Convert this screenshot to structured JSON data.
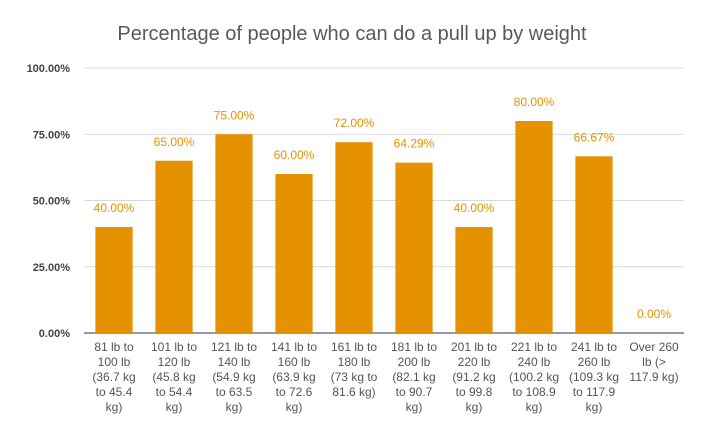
{
  "chart_data": {
    "type": "bar",
    "title": "Percentage of people who can do a pull up by weight",
    "xlabel": "",
    "ylabel": "",
    "ylim": [
      0,
      100
    ],
    "yticks": [
      "0.00%",
      "25.00%",
      "50.00%",
      "75.00%",
      "100.00%"
    ],
    "ytick_values": [
      0,
      25,
      50,
      75,
      100
    ],
    "grid": true,
    "legend": "none",
    "bar_color": "#e69100",
    "label_color": "#e69100",
    "categories": [
      [
        "81 lb to",
        "100 lb",
        "(36.7 kg",
        "to 45.4",
        "kg)"
      ],
      [
        "101 lb to",
        "120 lb",
        "(45.8 kg",
        "to 54.4",
        "kg)"
      ],
      [
        "121 lb to",
        "140 lb",
        "(54.9 kg",
        "to 63.5",
        "kg)"
      ],
      [
        "141 lb to",
        "160 lb",
        "(63.9 kg",
        "to 72.6",
        "kg)"
      ],
      [
        "161 lb to",
        "180 lb",
        "(73 kg to",
        "81.6 kg)"
      ],
      [
        "181 lb to",
        "200 lb",
        "(82.1 kg",
        "to 90.7",
        "kg)"
      ],
      [
        "201 lb to",
        "220 lb",
        "(91.2 kg",
        "to 99.8",
        "kg)"
      ],
      [
        "221 lb to",
        "240 lb",
        "(100.2 kg",
        "to 108.9",
        "kg)"
      ],
      [
        "241 lb to",
        "260 lb",
        "(109.3 kg",
        "to 117.9",
        "kg)"
      ],
      [
        "Over 260",
        "lb (>",
        "117.9 kg)"
      ]
    ],
    "values": [
      40,
      65,
      75,
      60,
      72,
      64.29,
      40,
      80,
      66.67,
      0
    ],
    "data_labels": [
      "40.00%",
      "65.00%",
      "75.00%",
      "60.00%",
      "72.00%",
      "64.29%",
      "40.00%",
      "80.00%",
      "66.67%",
      "0.00%"
    ]
  }
}
